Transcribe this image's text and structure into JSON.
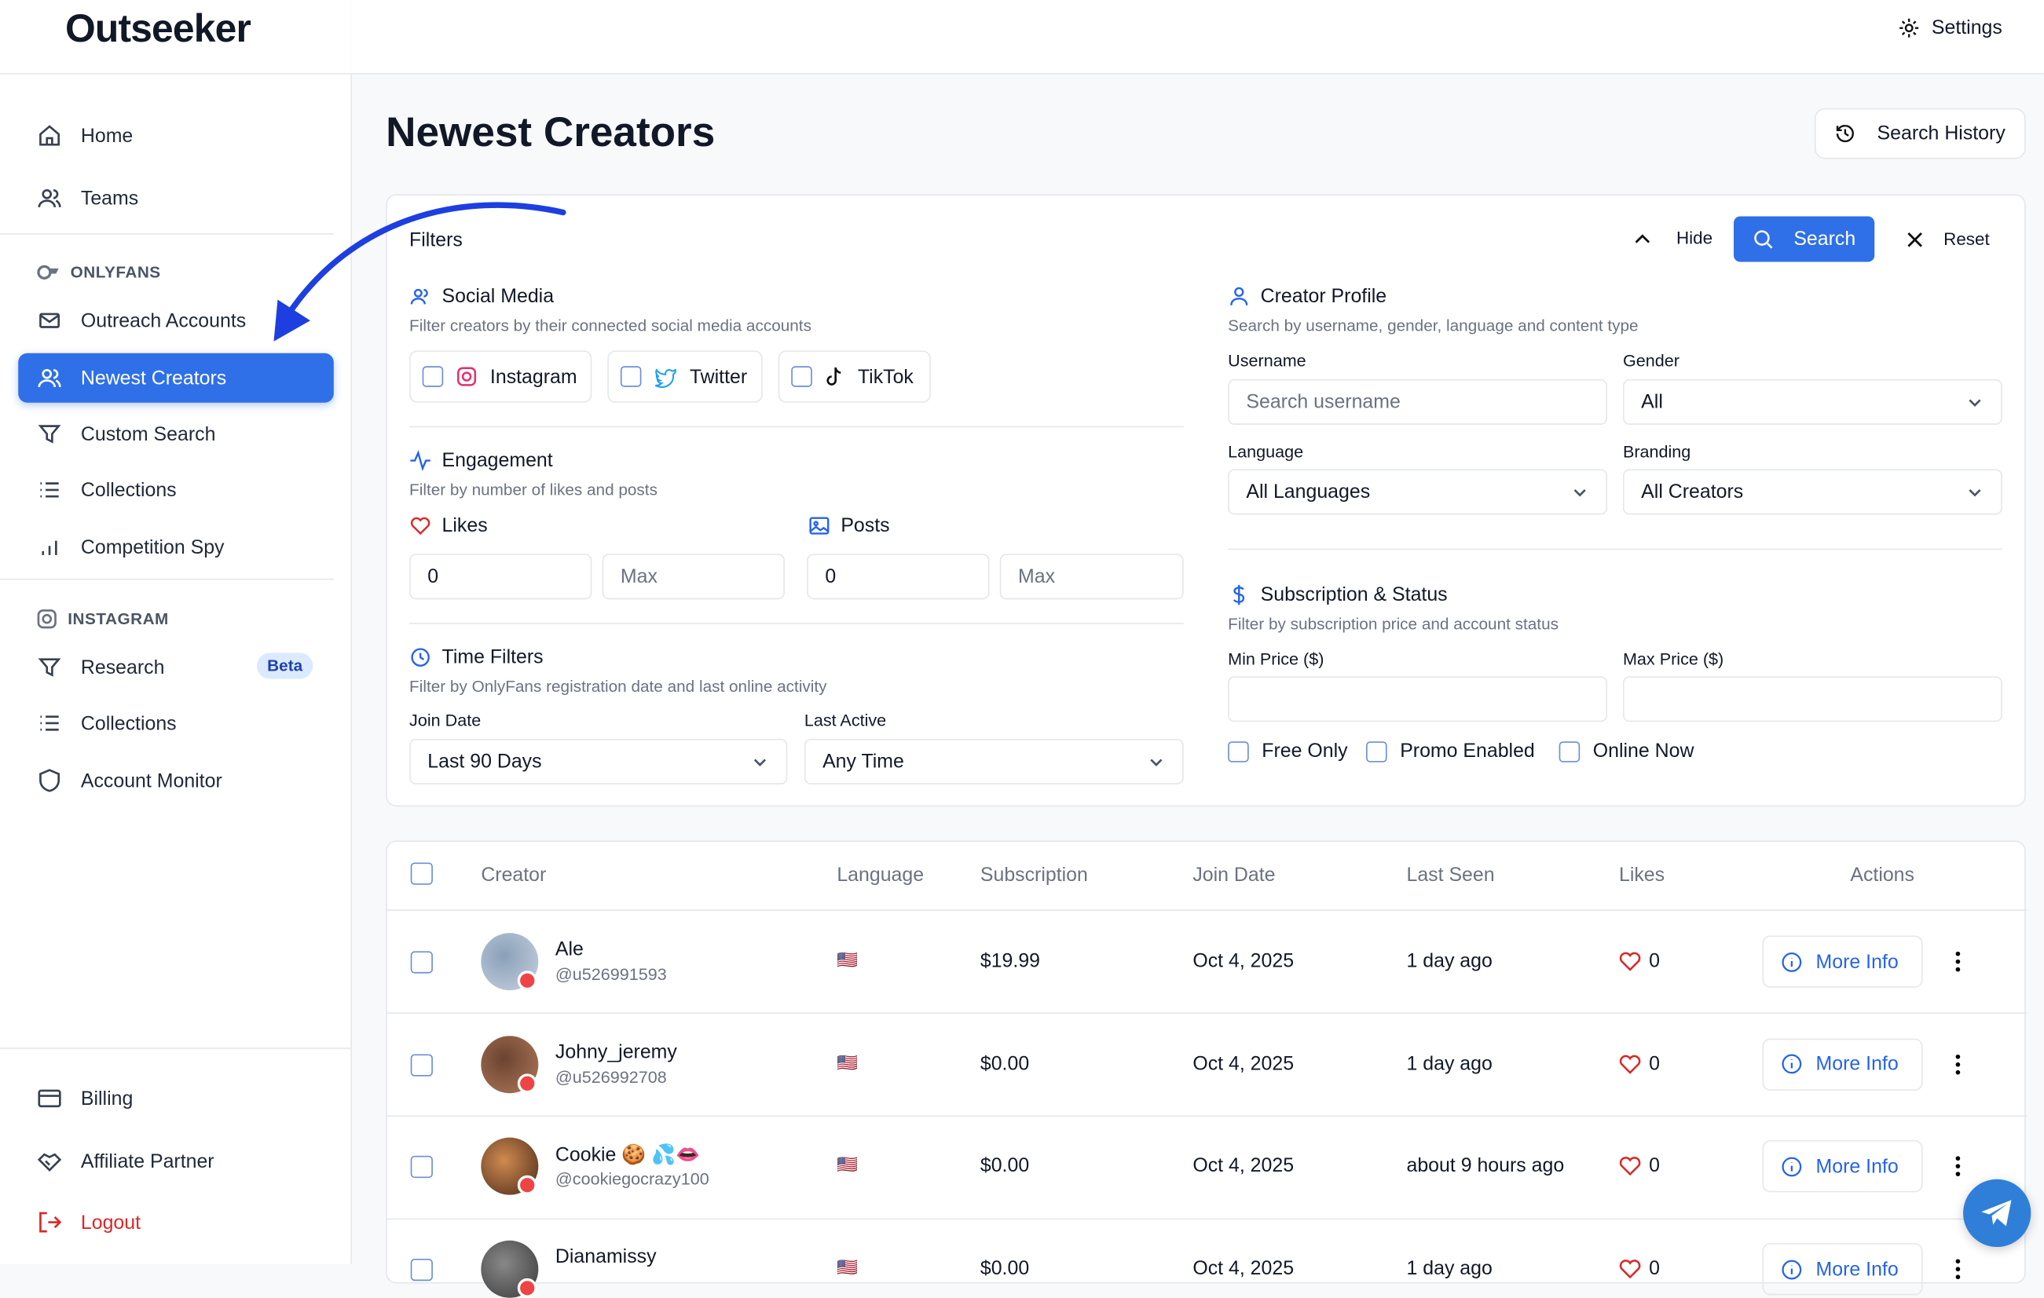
{
  "brand": "Outseeker",
  "topbar": {
    "settings": "Settings"
  },
  "sidebar": {
    "main": [
      "Home",
      "Teams"
    ],
    "onlyfans": {
      "heading": "ONLYFANS",
      "items": [
        "Outreach Accounts",
        "Newest Creators",
        "Custom Search",
        "Collections",
        "Competition Spy"
      ]
    },
    "instagram": {
      "heading": "INSTAGRAM",
      "items": [
        "Research",
        "Collections",
        "Account Monitor"
      ],
      "badge": "Beta"
    },
    "bottom": [
      "Billing",
      "Affiliate Partner",
      "Logout"
    ]
  },
  "page": {
    "title": "Newest Creators",
    "search_history": "Search History"
  },
  "filters": {
    "title": "Filters",
    "hide": "Hide",
    "search": "Search",
    "reset": "Reset",
    "social": {
      "title": "Social Media",
      "description": "Filter creators by their connected social media accounts",
      "options": [
        "Instagram",
        "Twitter",
        "TikTok"
      ]
    },
    "engagement": {
      "title": "Engagement",
      "description": "Filter by number of likes and posts",
      "likes": "Likes",
      "posts": "Posts",
      "min_value": "0",
      "max_placeholder": "Max"
    },
    "time": {
      "title": "Time Filters",
      "description": "Filter by OnlyFans registration date and last online activity",
      "join_label": "Join Date",
      "join_value": "Last 90 Days",
      "active_label": "Last Active",
      "active_value": "Any Time"
    },
    "profile": {
      "title": "Creator Profile",
      "description": "Search by username, gender, language and content type",
      "username_label": "Username",
      "username_placeholder": "Search username",
      "gender_label": "Gender",
      "gender_value": "All",
      "language_label": "Language",
      "language_value": "All Languages",
      "branding_label": "Branding",
      "branding_value": "All Creators"
    },
    "subscription": {
      "title": "Subscription & Status",
      "description": "Filter by subscription price and account status",
      "min_label": "Min Price ($)",
      "max_label": "Max Price ($)",
      "options": [
        "Free Only",
        "Promo Enabled",
        "Online Now"
      ]
    }
  },
  "table": {
    "headers": [
      "Creator",
      "Language",
      "Subscription",
      "Join Date",
      "Last Seen",
      "Likes",
      "Actions"
    ],
    "rows": [
      {
        "name": "Ale",
        "handle": "@u526991593",
        "language": "🇺🇸",
        "subscription": "$19.99",
        "join_date": "Oct 4, 2025",
        "last_seen": "1 day ago",
        "likes": 0,
        "action": "More Info"
      },
      {
        "name": "Johny_jeremy",
        "handle": "@u526992708",
        "language": "🇺🇸",
        "subscription": "$0.00",
        "join_date": "Oct 4, 2025",
        "last_seen": "1 day ago",
        "likes": 0,
        "action": "More Info"
      },
      {
        "name": "Cookie 🍪 💦👄",
        "handle": "@cookiegocrazy100",
        "language": "🇺🇸",
        "subscription": "$0.00",
        "join_date": "Oct 4, 2025",
        "last_seen": "about 9 hours ago",
        "likes": 0,
        "action": "More Info"
      },
      {
        "name": "Dianamissy",
        "handle": "",
        "language": "🇺🇸",
        "subscription": "$0.00",
        "join_date": "Oct 4, 2025",
        "last_seen": "1 day ago",
        "likes": 0,
        "action": "More Info"
      }
    ]
  }
}
